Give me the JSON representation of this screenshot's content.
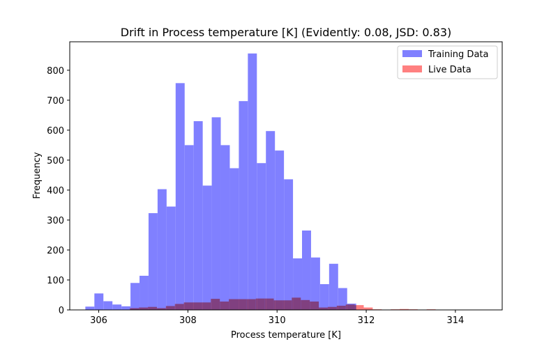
{
  "chart_data": {
    "type": "bar",
    "title": "Drift in Process temperature [K] (Evidently: 0.08, JSD: 0.83)",
    "xlabel": "Process temperature [K]",
    "ylabel": "Frequency",
    "xlim": [
      305.35,
      315.05
    ],
    "ylim": [
      0,
      895
    ],
    "xticks": [
      306,
      308,
      310,
      312,
      314
    ],
    "yticks": [
      0,
      100,
      200,
      300,
      400,
      500,
      600,
      700,
      800
    ],
    "grid": false,
    "legend": "top-right",
    "series": [
      {
        "name": "Training Data",
        "color": "#8080ff",
        "bin_start": 305.7,
        "bin_width": 0.2025,
        "values": [
          11,
          55,
          29,
          18,
          12,
          90,
          114,
          323,
          403,
          345,
          757,
          550,
          630,
          415,
          643,
          550,
          473,
          697,
          856,
          490,
          597,
          532,
          436,
          172,
          265,
          175,
          86,
          154,
          73,
          21
        ]
      },
      {
        "name": "Live Data",
        "color": "#ff8080",
        "bin_start": 306.7,
        "bin_width": 0.2017,
        "values": [
          6,
          8,
          10,
          6,
          13,
          20,
          25,
          25,
          25,
          37,
          28,
          36,
          36,
          36,
          38,
          38,
          32,
          32,
          41,
          33,
          28,
          8,
          10,
          14,
          18,
          16,
          8,
          2,
          1,
          2,
          3,
          2,
          1,
          2,
          1,
          1,
          1,
          1,
          1,
          1
        ]
      }
    ]
  }
}
